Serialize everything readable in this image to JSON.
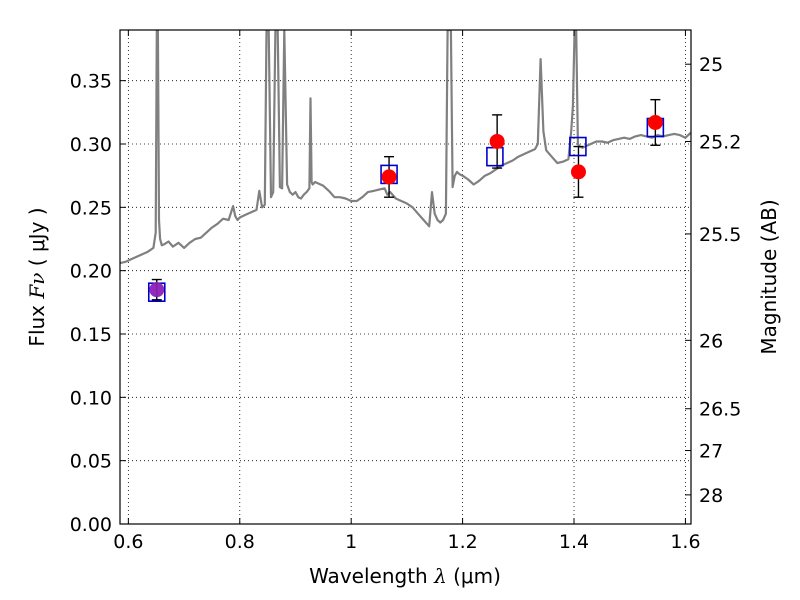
{
  "chart_data": {
    "type": "line",
    "xlabel": "Wavelength",
    "xlabel_symbol": "λ",
    "xlabel_unit": "(μm)",
    "ylabel": "Flux",
    "ylabel_symbol": "Fν",
    "ylabel_unit": "( μJy )",
    "y2label": "Magnitude (AB)",
    "xlim": [
      0.585,
      1.61
    ],
    "ylim": [
      0.0,
      0.39
    ],
    "grid": true,
    "x_ticks": [
      0.6,
      0.8,
      1.0,
      1.2,
      1.4,
      1.6
    ],
    "x_tick_labels": [
      "0.6",
      "0.8",
      "1",
      "1.2",
      "1.4",
      "1.6"
    ],
    "y_ticks": [
      0.0,
      0.05,
      0.1,
      0.15,
      0.2,
      0.25,
      0.3,
      0.35
    ],
    "y_tick_labels": [
      "0.00",
      "0.05",
      "0.10",
      "0.15",
      "0.20",
      "0.25",
      "0.30",
      "0.35"
    ],
    "y2_ticks": [
      {
        "label": "25",
        "flux": 0.363
      },
      {
        "label": "25.2",
        "flux": 0.302
      },
      {
        "label": "25.5",
        "flux": 0.229
      },
      {
        "label": "26",
        "flux": 0.145
      },
      {
        "label": "26.5",
        "flux": 0.091
      },
      {
        "label": "27",
        "flux": 0.058
      },
      {
        "label": "28",
        "flux": 0.023
      }
    ],
    "series": [
      {
        "type": "line",
        "color": "#808080",
        "x": [
          0.585,
          0.595,
          0.605,
          0.615,
          0.625,
          0.635,
          0.645,
          0.649,
          0.651,
          0.653,
          0.655,
          0.657,
          0.66,
          0.665,
          0.672,
          0.68,
          0.69,
          0.7,
          0.71,
          0.72,
          0.73,
          0.74,
          0.75,
          0.76,
          0.77,
          0.78,
          0.788,
          0.792,
          0.796,
          0.8,
          0.81,
          0.82,
          0.83,
          0.835,
          0.84,
          0.845,
          0.848,
          0.852,
          0.856,
          0.86,
          0.864,
          0.868,
          0.872,
          0.876,
          0.88,
          0.885,
          0.89,
          0.895,
          0.9,
          0.905,
          0.91,
          0.915,
          0.92,
          0.925,
          0.927,
          0.929,
          0.931,
          0.935,
          0.94,
          0.95,
          0.96,
          0.97,
          0.98,
          0.99,
          1.0,
          1.01,
          1.02,
          1.03,
          1.04,
          1.05,
          1.06,
          1.065,
          1.07,
          1.08,
          1.09,
          1.1,
          1.11,
          1.12,
          1.13,
          1.14,
          1.145,
          1.15,
          1.155,
          1.16,
          1.165,
          1.17,
          1.173,
          1.176,
          1.179,
          1.182,
          1.186,
          1.19,
          1.195,
          1.2,
          1.21,
          1.22,
          1.23,
          1.24,
          1.25,
          1.26,
          1.27,
          1.28,
          1.29,
          1.3,
          1.31,
          1.32,
          1.33,
          1.335,
          1.34,
          1.345,
          1.35,
          1.36,
          1.37,
          1.38,
          1.39,
          1.395,
          1.398,
          1.401,
          1.404,
          1.407,
          1.41,
          1.415,
          1.42,
          1.43,
          1.44,
          1.45,
          1.46,
          1.47,
          1.48,
          1.49,
          1.5,
          1.51,
          1.52,
          1.53,
          1.54,
          1.55,
          1.56,
          1.57,
          1.58,
          1.59,
          1.6,
          1.61
        ],
        "y": [
          0.206,
          0.207,
          0.209,
          0.211,
          0.213,
          0.215,
          0.218,
          0.23,
          0.39,
          0.39,
          0.24,
          0.225,
          0.22,
          0.221,
          0.223,
          0.219,
          0.222,
          0.218,
          0.222,
          0.225,
          0.226,
          0.23,
          0.234,
          0.237,
          0.241,
          0.24,
          0.251,
          0.243,
          0.24,
          0.242,
          0.244,
          0.246,
          0.248,
          0.263,
          0.25,
          0.252,
          0.39,
          0.39,
          0.258,
          0.262,
          0.39,
          0.39,
          0.266,
          0.265,
          0.39,
          0.268,
          0.262,
          0.26,
          0.262,
          0.258,
          0.257,
          0.26,
          0.262,
          0.265,
          0.336,
          0.27,
          0.268,
          0.27,
          0.269,
          0.267,
          0.263,
          0.258,
          0.258,
          0.257,
          0.255,
          0.255,
          0.258,
          0.262,
          0.263,
          0.264,
          0.265,
          0.26,
          0.262,
          0.257,
          0.255,
          0.253,
          0.25,
          0.245,
          0.24,
          0.235,
          0.262,
          0.245,
          0.24,
          0.238,
          0.24,
          0.245,
          0.39,
          0.39,
          0.39,
          0.266,
          0.275,
          0.278,
          0.276,
          0.275,
          0.272,
          0.268,
          0.271,
          0.275,
          0.277,
          0.28,
          0.283,
          0.285,
          0.287,
          0.29,
          0.292,
          0.294,
          0.296,
          0.3,
          0.367,
          0.31,
          0.295,
          0.29,
          0.285,
          0.286,
          0.288,
          0.31,
          0.33,
          0.39,
          0.39,
          0.3,
          0.298,
          0.297,
          0.298,
          0.3,
          0.302,
          0.302,
          0.301,
          0.303,
          0.304,
          0.305,
          0.304,
          0.306,
          0.307,
          0.306,
          0.305,
          0.307,
          0.306,
          0.307,
          0.308,
          0.307,
          0.305,
          0.309
        ]
      },
      {
        "type": "scatter",
        "marker": "square-open",
        "color": "#0000cc",
        "x": [
          0.651,
          1.068,
          1.258,
          1.407,
          1.546
        ],
        "y": [
          0.183,
          0.276,
          0.29,
          0.298,
          0.313
        ]
      },
      {
        "type": "scatter",
        "marker": "circle",
        "color": "#ff0000",
        "x": [
          0.651,
          1.068,
          1.262,
          1.408,
          1.546
        ],
        "y": [
          0.185,
          0.274,
          0.302,
          0.278,
          0.317
        ],
        "yerr": [
          0.008,
          0.016,
          0.021,
          0.02,
          0.018
        ]
      }
    ],
    "overlap_point": {
      "x": 0.651,
      "y": 0.185,
      "color": "#8a20b8"
    }
  }
}
